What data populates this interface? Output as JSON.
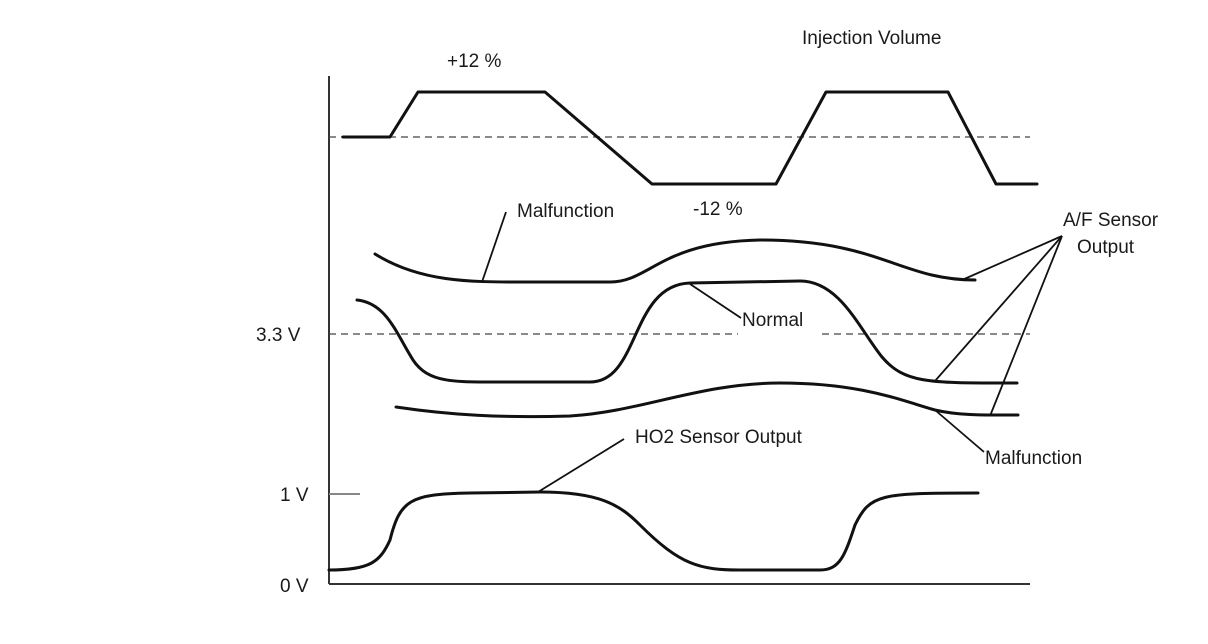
{
  "diagram": {
    "title": "Injection Volume",
    "injection_high": "+12 %",
    "injection_low": "-12 %",
    "y_labels": {
      "v33": "3.3 V",
      "v1": "1 V",
      "v0": "0 V"
    },
    "labels": {
      "malfunction_upper": "Malfunction",
      "normal": "Normal",
      "af_sensor_line1": "A/F Sensor",
      "af_sensor_line2": "Output",
      "malfunction_lower": "Malfunction",
      "ho2_sensor": "HO2 Sensor Output"
    },
    "colors": {
      "line": "#111111",
      "background": "#ffffff"
    }
  }
}
